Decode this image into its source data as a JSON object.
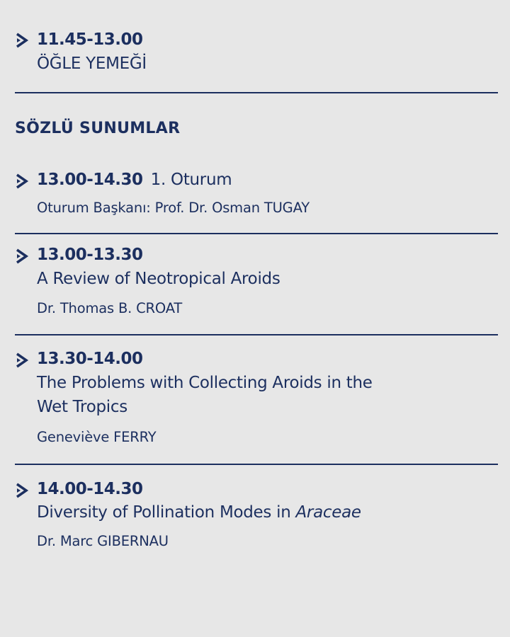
{
  "colors": {
    "text": "#1c2f5f",
    "background": "#e7e7e7"
  },
  "lunch": {
    "time": "11.45-13.00",
    "title": "ÖĞLE YEMEĞİ"
  },
  "section_title": "SÖZLÜ SUNUMLAR",
  "session": {
    "time": "13.00-14.30",
    "title": "1. Oturum",
    "chair": "Oturum Başkanı: Prof. Dr. Osman TUGAY"
  },
  "talks": [
    {
      "time": "13.00-13.30",
      "title": "A Review of Neotropical Aroids",
      "speaker": "Dr. Thomas B. CROAT"
    },
    {
      "time": "13.30-14.00",
      "title_line1": "The Problems with Collecting Aroids in the",
      "title_line2": "Wet Tropics",
      "speaker": "Geneviève FERRY"
    },
    {
      "time": "14.00-14.30",
      "title": "Diversity of Pollination Modes in ",
      "title_italic": "Araceae",
      "speaker": "Dr. Marc GIBERNAU"
    }
  ],
  "icons": {
    "bullet": "chevron-right-icon"
  }
}
